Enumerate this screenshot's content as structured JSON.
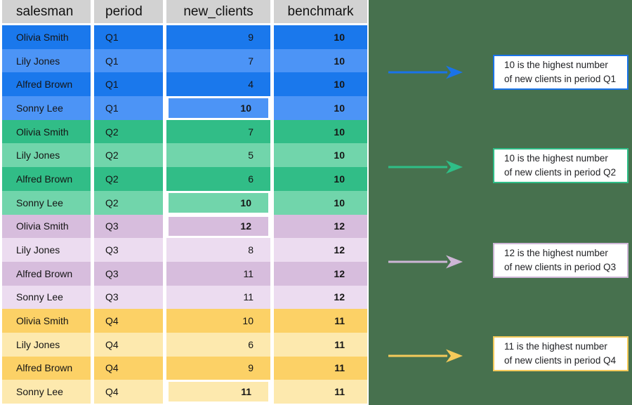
{
  "colors": {
    "panel_bg": "#47714e",
    "header_bg": "#d2d2d2",
    "q1_dark": "#1a78ec",
    "q1_light": "#4c94f6",
    "q2_dark": "#31bd87",
    "q2_light": "#71d5ab",
    "q3_dark": "#d7bddd",
    "q3_light": "#ecdcf0",
    "q4_dark": "#fcd166",
    "q4_light": "#fde9ae",
    "callout_q1": "#1a73e8",
    "callout_q2": "#2fbe87",
    "callout_q3": "#cdb6d6",
    "callout_q4": "#f5ca5a"
  },
  "table": {
    "headers": [
      "salesman",
      "period",
      "new_clients",
      "benchmark"
    ],
    "rows": [
      {
        "salesman": "Olivia Smith",
        "period": "Q1",
        "new_clients": 9,
        "benchmark": 10,
        "quarter": "q1",
        "shade": "dark",
        "highlight": false
      },
      {
        "salesman": "Lily Jones",
        "period": "Q1",
        "new_clients": 7,
        "benchmark": 10,
        "quarter": "q1",
        "shade": "light",
        "highlight": false
      },
      {
        "salesman": "Alfred Brown",
        "period": "Q1",
        "new_clients": 4,
        "benchmark": 10,
        "quarter": "q1",
        "shade": "dark",
        "highlight": false
      },
      {
        "salesman": "Sonny Lee",
        "period": "Q1",
        "new_clients": 10,
        "benchmark": 10,
        "quarter": "q1",
        "shade": "light",
        "highlight": true
      },
      {
        "salesman": "Olivia Smith",
        "period": "Q2",
        "new_clients": 7,
        "benchmark": 10,
        "quarter": "q2",
        "shade": "dark",
        "highlight": false
      },
      {
        "salesman": "Lily Jones",
        "period": "Q2",
        "new_clients": 5,
        "benchmark": 10,
        "quarter": "q2",
        "shade": "light",
        "highlight": false
      },
      {
        "salesman": "Alfred Brown",
        "period": "Q2",
        "new_clients": 6,
        "benchmark": 10,
        "quarter": "q2",
        "shade": "dark",
        "highlight": false
      },
      {
        "salesman": "Sonny Lee",
        "period": "Q2",
        "new_clients": 10,
        "benchmark": 10,
        "quarter": "q2",
        "shade": "light",
        "highlight": true
      },
      {
        "salesman": "Olivia Smith",
        "period": "Q3",
        "new_clients": 12,
        "benchmark": 12,
        "quarter": "q3",
        "shade": "dark",
        "highlight": true
      },
      {
        "salesman": "Lily Jones",
        "period": "Q3",
        "new_clients": 8,
        "benchmark": 12,
        "quarter": "q3",
        "shade": "light",
        "highlight": false
      },
      {
        "salesman": "Alfred Brown",
        "period": "Q3",
        "new_clients": 11,
        "benchmark": 12,
        "quarter": "q3",
        "shade": "dark",
        "highlight": false
      },
      {
        "salesman": "Sonny Lee",
        "period": "Q3",
        "new_clients": 11,
        "benchmark": 12,
        "quarter": "q3",
        "shade": "light",
        "highlight": false
      },
      {
        "salesman": "Olivia Smith",
        "period": "Q4",
        "new_clients": 10,
        "benchmark": 11,
        "quarter": "q4",
        "shade": "dark",
        "highlight": false
      },
      {
        "salesman": "Lily Jones",
        "period": "Q4",
        "new_clients": 6,
        "benchmark": 11,
        "quarter": "q4",
        "shade": "light",
        "highlight": false
      },
      {
        "salesman": "Alfred Brown",
        "period": "Q4",
        "new_clients": 9,
        "benchmark": 11,
        "quarter": "q4",
        "shade": "dark",
        "highlight": false
      },
      {
        "salesman": "Sonny Lee",
        "period": "Q4",
        "new_clients": 11,
        "benchmark": 11,
        "quarter": "q4",
        "shade": "light",
        "highlight": true
      }
    ]
  },
  "callouts": [
    {
      "line1": "10 is the highest number",
      "line2": "of new clients in period Q1",
      "color_key": "callout_q1"
    },
    {
      "line1": "10 is the highest number",
      "line2": "of new clients in period Q2",
      "color_key": "callout_q2"
    },
    {
      "line1": "12 is the highest number",
      "line2": "of new clients in period Q3",
      "color_key": "callout_q3"
    },
    {
      "line1": "11 is the highest number",
      "line2": "of new clients in period Q4",
      "color_key": "callout_q4"
    }
  ],
  "chart_data": {
    "type": "table",
    "title": "",
    "columns": [
      "salesman",
      "period",
      "new_clients",
      "benchmark"
    ],
    "rows": [
      [
        "Olivia Smith",
        "Q1",
        9,
        10
      ],
      [
        "Lily Jones",
        "Q1",
        7,
        10
      ],
      [
        "Alfred Brown",
        "Q1",
        4,
        10
      ],
      [
        "Sonny Lee",
        "Q1",
        10,
        10
      ],
      [
        "Olivia Smith",
        "Q2",
        7,
        10
      ],
      [
        "Lily Jones",
        "Q2",
        5,
        10
      ],
      [
        "Alfred Brown",
        "Q2",
        6,
        10
      ],
      [
        "Sonny Lee",
        "Q2",
        10,
        10
      ],
      [
        "Olivia Smith",
        "Q3",
        12,
        12
      ],
      [
        "Lily Jones",
        "Q3",
        8,
        12
      ],
      [
        "Alfred Brown",
        "Q3",
        11,
        12
      ],
      [
        "Sonny Lee",
        "Q3",
        11,
        12
      ],
      [
        "Olivia Smith",
        "Q4",
        10,
        11
      ],
      [
        "Lily Jones",
        "Q4",
        6,
        11
      ],
      [
        "Alfred Brown",
        "Q4",
        9,
        11
      ],
      [
        "Sonny Lee",
        "Q4",
        11,
        11
      ]
    ],
    "highlighted_max_per_period": {
      "Q1": 10,
      "Q2": 10,
      "Q3": 12,
      "Q4": 11
    },
    "annotations": [
      "10 is the highest number of new clients in period Q1",
      "10 is the highest number of new clients in period Q2",
      "12 is the highest number of new clients in period Q3",
      "11 is the highest number of new clients in period Q4"
    ]
  }
}
